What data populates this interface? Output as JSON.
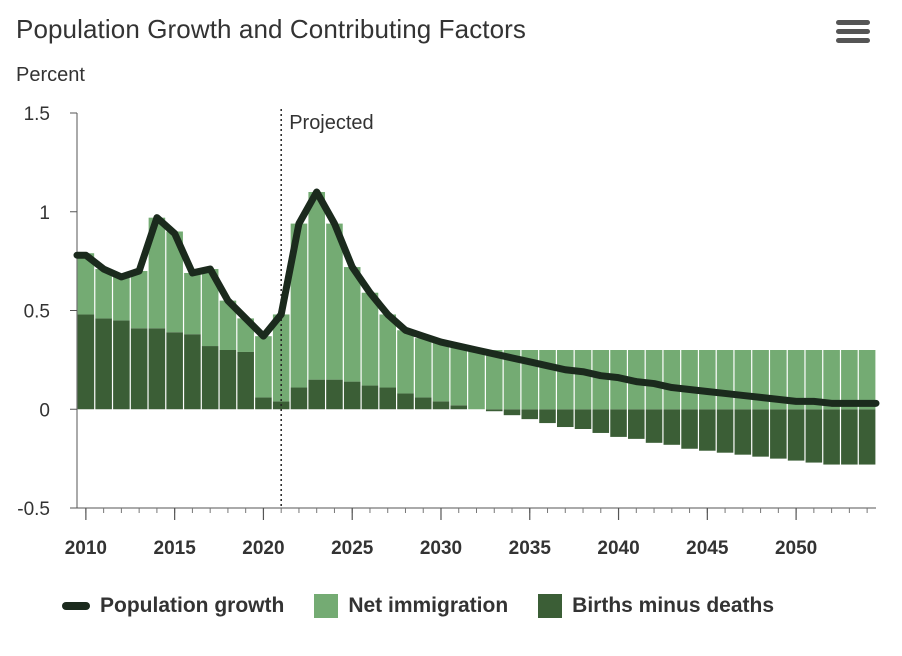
{
  "title": "Population Growth and Contributing Factors",
  "menu_icon": "hamburger-menu-icon",
  "legend": {
    "population_growth": "Population growth",
    "net_immigration": "Net immigration",
    "births_minus_deaths": "Births minus deaths"
  },
  "colors": {
    "population_growth": "#1b2a1d",
    "net_immigration": "#74ab73",
    "births_minus_deaths": "#3b5e36"
  },
  "chart_data": {
    "type": "bar",
    "stacked": true,
    "ylabel": "Percent",
    "ylim": [
      -0.5,
      1.5
    ],
    "yticks": [
      -0.5,
      0,
      0.5,
      1,
      1.5
    ],
    "ytick_labels": [
      "-0.5",
      "0",
      "0.5",
      "1",
      "1.5"
    ],
    "xticks": [
      2010,
      2015,
      2020,
      2025,
      2030,
      2035,
      2040,
      2045,
      2050
    ],
    "xtick_labels": [
      "2010",
      "2015",
      "2020",
      "2025",
      "2030",
      "2035",
      "2040",
      "2045",
      "2050"
    ],
    "annotation": "Projected",
    "projected_start": 2021.5,
    "years": [
      2010,
      2011,
      2012,
      2013,
      2014,
      2015,
      2016,
      2017,
      2018,
      2019,
      2020,
      2021,
      2022,
      2023,
      2024,
      2025,
      2026,
      2027,
      2028,
      2029,
      2030,
      2031,
      2032,
      2033,
      2034,
      2035,
      2036,
      2037,
      2038,
      2039,
      2040,
      2041,
      2042,
      2043,
      2044,
      2045,
      2046,
      2047,
      2048,
      2049,
      2050,
      2051,
      2052,
      2053,
      2054
    ],
    "series": [
      {
        "name": "Net immigration",
        "values": [
          0.31,
          0.25,
          0.22,
          0.29,
          0.56,
          0.51,
          0.31,
          0.39,
          0.25,
          0.17,
          0.31,
          0.44,
          0.83,
          0.95,
          0.79,
          0.58,
          0.47,
          0.37,
          0.32,
          0.3,
          0.3,
          0.3,
          0.3,
          0.3,
          0.3,
          0.3,
          0.3,
          0.3,
          0.3,
          0.3,
          0.3,
          0.3,
          0.3,
          0.3,
          0.3,
          0.3,
          0.3,
          0.3,
          0.3,
          0.3,
          0.3,
          0.3,
          0.3,
          0.3,
          0.3
        ]
      },
      {
        "name": "Births minus deaths",
        "values": [
          0.48,
          0.46,
          0.45,
          0.41,
          0.41,
          0.39,
          0.38,
          0.32,
          0.3,
          0.29,
          0.06,
          0.04,
          0.11,
          0.15,
          0.15,
          0.14,
          0.12,
          0.11,
          0.08,
          0.06,
          0.04,
          0.02,
          0.0,
          -0.01,
          -0.03,
          -0.05,
          -0.07,
          -0.09,
          -0.1,
          -0.12,
          -0.14,
          -0.15,
          -0.17,
          -0.18,
          -0.2,
          -0.21,
          -0.22,
          -0.23,
          -0.24,
          -0.25,
          -0.26,
          -0.27,
          -0.28,
          -0.28,
          -0.28
        ]
      },
      {
        "name": "Population growth",
        "type": "line",
        "values": [
          0.78,
          0.71,
          0.67,
          0.7,
          0.97,
          0.89,
          0.69,
          0.71,
          0.55,
          0.46,
          0.37,
          0.48,
          0.94,
          1.1,
          0.94,
          0.72,
          0.59,
          0.48,
          0.4,
          0.37,
          0.34,
          0.32,
          0.3,
          0.28,
          0.26,
          0.24,
          0.22,
          0.2,
          0.19,
          0.17,
          0.16,
          0.14,
          0.13,
          0.11,
          0.1,
          0.09,
          0.08,
          0.07,
          0.06,
          0.05,
          0.04,
          0.04,
          0.03,
          0.03,
          0.03
        ]
      }
    ]
  }
}
